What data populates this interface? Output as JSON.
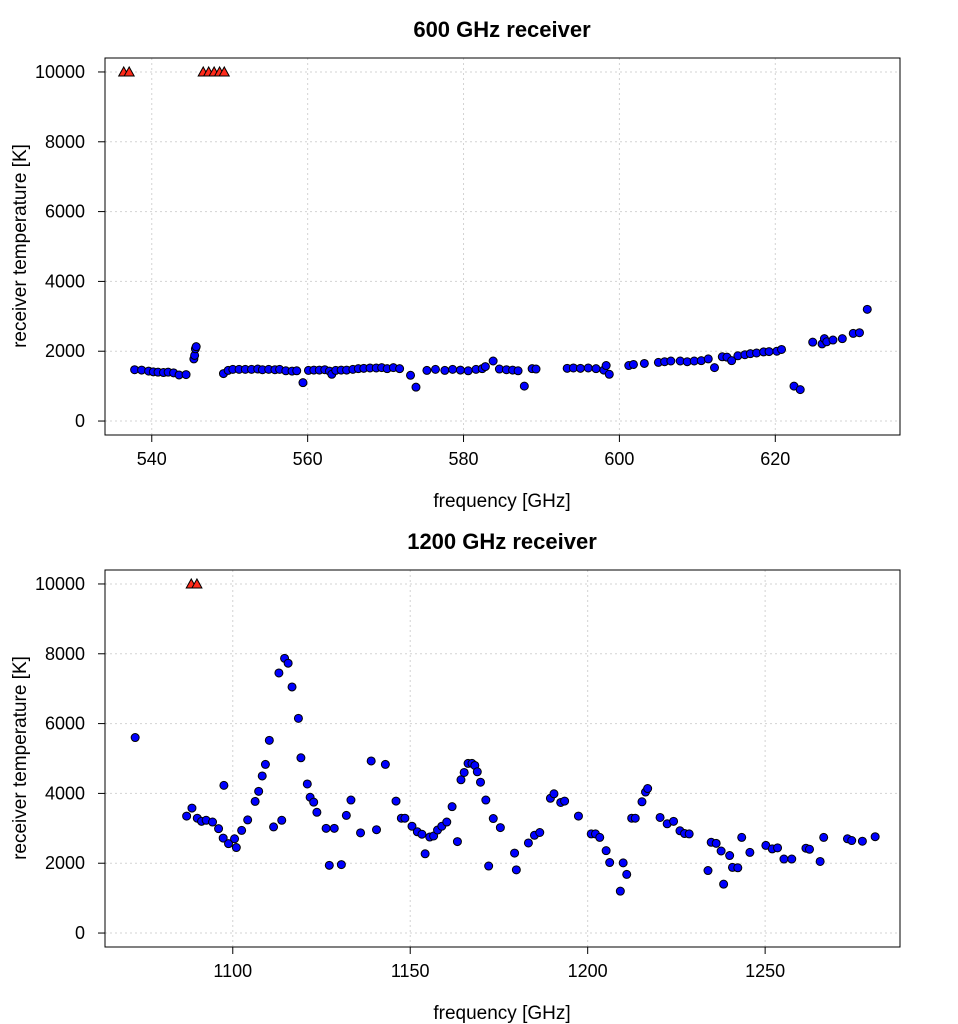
{
  "chart_data": [
    {
      "type": "scatter",
      "title": "600 GHz receiver",
      "xlabel": "frequency [GHz]",
      "ylabel": "receiver temperature [K]",
      "xlim": [
        534,
        636
      ],
      "ylim": [
        -400,
        10400
      ],
      "xticks": [
        540,
        560,
        580,
        600,
        620
      ],
      "yticks": [
        0,
        2000,
        4000,
        6000,
        8000,
        10000
      ],
      "grid": true,
      "colors": {
        "points": "#0000ff",
        "saturated": "#ff2a1a",
        "outline": "#000000"
      },
      "series": [
        {
          "marker": "circle",
          "color": "#0000ff",
          "points": [
            [
              537.8,
              1470
            ],
            [
              538.7,
              1460
            ],
            [
              539.6,
              1430
            ],
            [
              540.2,
              1410
            ],
            [
              540.8,
              1400
            ],
            [
              541.5,
              1390
            ],
            [
              542.1,
              1400
            ],
            [
              542.8,
              1380
            ],
            [
              543.5,
              1320
            ],
            [
              544.4,
              1330
            ],
            [
              545.4,
              1780
            ],
            [
              545.5,
              1880
            ],
            [
              545.6,
              2070
            ],
            [
              545.7,
              2130
            ],
            [
              549.2,
              1360
            ],
            [
              549.8,
              1450
            ],
            [
              550.4,
              1480
            ],
            [
              551.2,
              1480
            ],
            [
              552,
              1480
            ],
            [
              552.8,
              1480
            ],
            [
              553.6,
              1490
            ],
            [
              554.2,
              1470
            ],
            [
              555,
              1480
            ],
            [
              555.8,
              1470
            ],
            [
              556.4,
              1480
            ],
            [
              557.2,
              1440
            ],
            [
              558,
              1430
            ],
            [
              558.6,
              1440
            ],
            [
              559.4,
              1100
            ],
            [
              560.1,
              1450
            ],
            [
              560.8,
              1460
            ],
            [
              561.5,
              1460
            ],
            [
              562.2,
              1470
            ],
            [
              562.8,
              1430
            ],
            [
              563.1,
              1340
            ],
            [
              563.6,
              1450
            ],
            [
              564.3,
              1460
            ],
            [
              565,
              1460
            ],
            [
              565.8,
              1480
            ],
            [
              566.5,
              1500
            ],
            [
              567.2,
              1510
            ],
            [
              568,
              1520
            ],
            [
              568.8,
              1520
            ],
            [
              569.5,
              1530
            ],
            [
              570.2,
              1500
            ],
            [
              571,
              1530
            ],
            [
              571.8,
              1500
            ],
            [
              573.2,
              1310
            ],
            [
              573.9,
              970
            ],
            [
              575.3,
              1450
            ],
            [
              576.4,
              1480
            ],
            [
              577.6,
              1450
            ],
            [
              578.6,
              1480
            ],
            [
              579.6,
              1460
            ],
            [
              580.6,
              1440
            ],
            [
              581.6,
              1480
            ],
            [
              582.4,
              1500
            ],
            [
              582.8,
              1560
            ],
            [
              583.8,
              1720
            ],
            [
              584.6,
              1490
            ],
            [
              585.5,
              1470
            ],
            [
              586.3,
              1460
            ],
            [
              587,
              1440
            ],
            [
              587.8,
              1000
            ],
            [
              588.8,
              1500
            ],
            [
              589.3,
              1490
            ],
            [
              593.3,
              1510
            ],
            [
              594.1,
              1520
            ],
            [
              595,
              1510
            ],
            [
              596,
              1520
            ],
            [
              597,
              1500
            ],
            [
              598,
              1460
            ],
            [
              598.3,
              1590
            ],
            [
              598.7,
              1340
            ],
            [
              601.2,
              1590
            ],
            [
              601.8,
              1620
            ],
            [
              603.2,
              1650
            ],
            [
              605,
              1680
            ],
            [
              605.8,
              1700
            ],
            [
              606.6,
              1720
            ],
            [
              607.8,
              1720
            ],
            [
              608.7,
              1700
            ],
            [
              609.6,
              1720
            ],
            [
              610.5,
              1730
            ],
            [
              611.4,
              1780
            ],
            [
              612.2,
              1530
            ],
            [
              613.2,
              1840
            ],
            [
              613.8,
              1830
            ],
            [
              614.4,
              1730
            ],
            [
              615.2,
              1870
            ],
            [
              616.1,
              1900
            ],
            [
              616.8,
              1930
            ],
            [
              617.6,
              1950
            ],
            [
              618.5,
              1980
            ],
            [
              619.2,
              1990
            ],
            [
              620.2,
              2000
            ],
            [
              620.8,
              2050
            ],
            [
              622.4,
              1000
            ],
            [
              623.2,
              900
            ],
            [
              624.8,
              2260
            ],
            [
              626,
              2210
            ],
            [
              626.3,
              2360
            ],
            [
              626.6,
              2270
            ],
            [
              627.4,
              2320
            ],
            [
              628.6,
              2360
            ],
            [
              630,
              2510
            ],
            [
              630.8,
              2530
            ],
            [
              631.8,
              3200
            ]
          ]
        },
        {
          "marker": "triangle",
          "color": "#ff2a1a",
          "points": [
            [
              536.4,
              10000
            ],
            [
              537.1,
              10000
            ],
            [
              546.6,
              10000
            ],
            [
              547.3,
              10000
            ],
            [
              548,
              10000
            ],
            [
              548.7,
              10000
            ],
            [
              549.3,
              10000
            ]
          ]
        }
      ]
    },
    {
      "type": "scatter",
      "title": "1200 GHz receiver",
      "xlabel": "frequency [GHz]",
      "ylabel": "receiver temperature [K]",
      "xlim": [
        1064,
        1288
      ],
      "ylim": [
        -400,
        10400
      ],
      "xticks": [
        1100,
        1150,
        1200,
        1250
      ],
      "yticks": [
        0,
        2000,
        4000,
        6000,
        8000,
        10000
      ],
      "grid": true,
      "colors": {
        "points": "#0000ff",
        "saturated": "#ff2a1a",
        "outline": "#000000"
      },
      "series": [
        {
          "marker": "circle",
          "color": "#0000ff",
          "points": [
            [
              1072.5,
              5600
            ],
            [
              1087,
              3350
            ],
            [
              1088.5,
              3580
            ],
            [
              1090,
              3290
            ],
            [
              1091.2,
              3200
            ],
            [
              1092.5,
              3230
            ],
            [
              1094.3,
              3180
            ],
            [
              1096,
              2990
            ],
            [
              1097.3,
              2720
            ],
            [
              1097.5,
              4230
            ],
            [
              1098.8,
              2560
            ],
            [
              1100.5,
              2700
            ],
            [
              1101,
              2450
            ],
            [
              1102.5,
              2940
            ],
            [
              1104.2,
              3240
            ],
            [
              1106.3,
              3770
            ],
            [
              1107.3,
              4060
            ],
            [
              1108.3,
              4500
            ],
            [
              1109.2,
              4830
            ],
            [
              1110.3,
              5520
            ],
            [
              1111.5,
              3040
            ],
            [
              1113,
              7450
            ],
            [
              1113.8,
              3230
            ],
            [
              1114.6,
              7870
            ],
            [
              1115.6,
              7730
            ],
            [
              1116.7,
              7050
            ],
            [
              1118.5,
              6150
            ],
            [
              1119.2,
              5020
            ],
            [
              1121,
              4270
            ],
            [
              1121.8,
              3890
            ],
            [
              1122.8,
              3750
            ],
            [
              1123.7,
              3460
            ],
            [
              1126.3,
              3000
            ],
            [
              1127.2,
              1940
            ],
            [
              1128.6,
              3000
            ],
            [
              1130.6,
              1960
            ],
            [
              1132,
              3370
            ],
            [
              1133.3,
              3810
            ],
            [
              1136,
              2870
            ],
            [
              1139,
              4930
            ],
            [
              1140.5,
              2960
            ],
            [
              1143,
              4830
            ],
            [
              1146,
              3780
            ],
            [
              1147.5,
              3290
            ],
            [
              1148.5,
              3290
            ],
            [
              1150.5,
              3060
            ],
            [
              1152,
              2900
            ],
            [
              1153.3,
              2830
            ],
            [
              1154.2,
              2270
            ],
            [
              1155.5,
              2750
            ],
            [
              1156.6,
              2780
            ],
            [
              1157.7,
              2950
            ],
            [
              1158.9,
              3060
            ],
            [
              1160.3,
              3180
            ],
            [
              1161.8,
              3620
            ],
            [
              1163.3,
              2620
            ],
            [
              1164.3,
              4390
            ],
            [
              1165.2,
              4600
            ],
            [
              1166.3,
              4860
            ],
            [
              1167.4,
              4860
            ],
            [
              1168.2,
              4800
            ],
            [
              1168.9,
              4620
            ],
            [
              1169.8,
              4320
            ],
            [
              1171.3,
              3810
            ],
            [
              1172.1,
              1920
            ],
            [
              1173.4,
              3280
            ],
            [
              1175.4,
              3020
            ],
            [
              1179.4,
              2290
            ],
            [
              1179.9,
              1810
            ],
            [
              1183.3,
              2580
            ],
            [
              1185,
              2800
            ],
            [
              1186.5,
              2880
            ],
            [
              1189.5,
              3860
            ],
            [
              1190.5,
              3990
            ],
            [
              1192.4,
              3740
            ],
            [
              1193.5,
              3780
            ],
            [
              1197.4,
              3350
            ],
            [
              1201,
              2840
            ],
            [
              1202.2,
              2840
            ],
            [
              1203.4,
              2740
            ],
            [
              1205.2,
              2360
            ],
            [
              1206.2,
              2020
            ],
            [
              1209.2,
              1200
            ],
            [
              1210,
              2010
            ],
            [
              1211,
              1680
            ],
            [
              1212.4,
              3290
            ],
            [
              1213.4,
              3290
            ],
            [
              1215.3,
              3760
            ],
            [
              1216.3,
              4040
            ],
            [
              1216.9,
              4140
            ],
            [
              1220.4,
              3310
            ],
            [
              1222.4,
              3130
            ],
            [
              1224.2,
              3200
            ],
            [
              1226,
              2930
            ],
            [
              1227.3,
              2850
            ],
            [
              1228.6,
              2840
            ],
            [
              1233.9,
              1790
            ],
            [
              1234.8,
              2600
            ],
            [
              1236.2,
              2570
            ],
            [
              1237.6,
              2350
            ],
            [
              1238.3,
              1400
            ],
            [
              1240,
              2220
            ],
            [
              1240.8,
              1880
            ],
            [
              1242.3,
              1870
            ],
            [
              1243.4,
              2740
            ],
            [
              1245.7,
              2310
            ],
            [
              1250.2,
              2510
            ],
            [
              1252,
              2410
            ],
            [
              1253.5,
              2440
            ],
            [
              1255.3,
              2120
            ],
            [
              1257.5,
              2120
            ],
            [
              1261.5,
              2430
            ],
            [
              1262.5,
              2400
            ],
            [
              1265.5,
              2050
            ],
            [
              1266.5,
              2740
            ],
            [
              1273.2,
              2700
            ],
            [
              1274.4,
              2650
            ],
            [
              1277.4,
              2630
            ],
            [
              1281,
              2760
            ]
          ]
        },
        {
          "marker": "triangle",
          "color": "#ff2a1a",
          "points": [
            [
              1088.3,
              10000
            ],
            [
              1089.9,
              10000
            ]
          ]
        }
      ]
    }
  ]
}
